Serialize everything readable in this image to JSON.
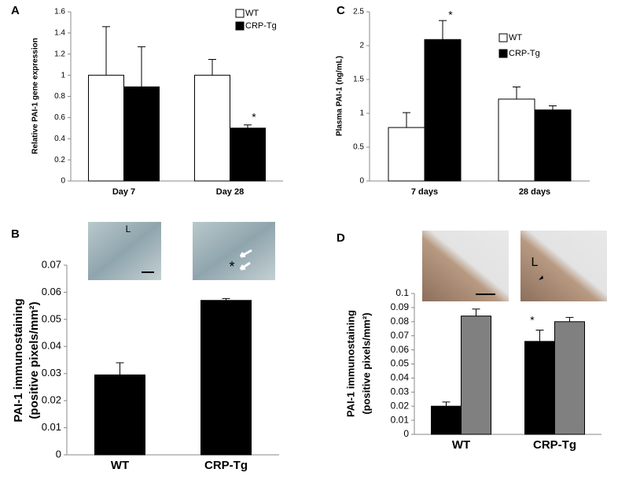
{
  "chart_data": [
    {
      "type": "bar",
      "panel": "A",
      "ylabel": "Relative PAI-1 gene expression",
      "categories": [
        "Day 7",
        "Day 28"
      ],
      "series": [
        {
          "name": "WT",
          "color": "#ffffff",
          "values": [
            1,
            1
          ],
          "errors": [
            0.46,
            0.15
          ]
        },
        {
          "name": "CRP-Tg",
          "color": "#000000",
          "values": [
            0.89,
            0.5
          ],
          "errors": [
            0.38,
            0.03
          ]
        }
      ],
      "ylim": [
        0,
        1.6
      ],
      "yticks": [
        0,
        0.2,
        0.4,
        0.6,
        0.8,
        1,
        1.2,
        1.4,
        1.6
      ],
      "annotations": [
        "*"
      ]
    },
    {
      "type": "bar",
      "panel": "C",
      "ylabel": "Plasma PAI-1 (ng/mL)",
      "categories": [
        "7 days",
        "28 days"
      ],
      "series": [
        {
          "name": "WT",
          "color": "#ffffff",
          "values": [
            0.79,
            1.21
          ],
          "errors": [
            0.22,
            0.18
          ]
        },
        {
          "name": "CRP-Tg",
          "color": "#000000",
          "values": [
            2.09,
            1.05
          ],
          "errors": [
            0.28,
            0.06
          ]
        }
      ],
      "ylim": [
        0,
        2.5
      ],
      "yticks": [
        0,
        0.5,
        1,
        1.5,
        2,
        2.5
      ],
      "annotations": [
        "*"
      ]
    },
    {
      "type": "bar",
      "panel": "B",
      "ylabel": [
        "PAI-1 immunostaining",
        "(positive pixels/mm²)"
      ],
      "categories": [
        "WT",
        "CRP-Tg"
      ],
      "series": [
        {
          "color": "#000000",
          "values": [
            0.0295,
            0.057
          ],
          "errors": [
            0.0045,
            0.0007
          ]
        }
      ],
      "ylim": [
        0,
        0.07
      ],
      "yticks": [
        0,
        0.01,
        0.02,
        0.03,
        0.04,
        0.05,
        0.06,
        0.07
      ],
      "annotations": [
        "*",
        "L"
      ]
    },
    {
      "type": "bar",
      "panel": "D",
      "ylabel": [
        "PAI-1 immunostaining",
        "(positive pixels/mm²)"
      ],
      "categories": [
        "WT",
        "CRP-Tg"
      ],
      "series": [
        {
          "color": "#000000",
          "values": [
            0.02,
            0.066
          ],
          "errors": [
            0.003,
            0.008
          ]
        },
        {
          "color": "#808080",
          "values": [
            0.084,
            0.08
          ],
          "errors": [
            0.005,
            0.003
          ]
        }
      ],
      "ylim": [
        0,
        0.1
      ],
      "yticks": [
        0,
        0.01,
        0.02,
        0.03,
        0.04,
        0.05,
        0.06,
        0.07,
        0.08,
        0.09,
        0.1
      ],
      "annotations": [
        "*",
        "L"
      ]
    }
  ]
}
